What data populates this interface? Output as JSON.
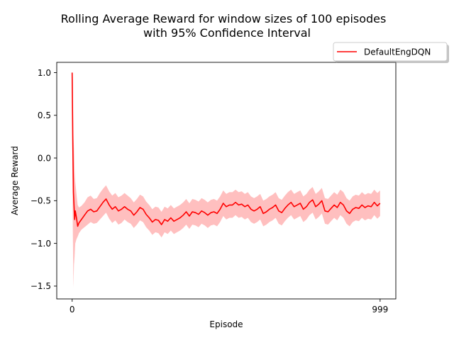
{
  "chart_data": {
    "type": "line",
    "title_line1": "Rolling Average Reward for window sizes of 100 episodes",
    "title_line2": "with 95% Confidence Interval",
    "xlabel": "Episode",
    "ylabel": "Average Reward",
    "xlim": [
      -50,
      1050
    ],
    "ylim": [
      -1.65,
      1.12
    ],
    "x_ticks": [
      {
        "value": 0,
        "label": "0"
      },
      {
        "value": 999,
        "label": "999"
      }
    ],
    "y_ticks": [
      {
        "value": 1.0,
        "label": "1.0"
      },
      {
        "value": 0.5,
        "label": "0.5"
      },
      {
        "value": 0.0,
        "label": "0.0"
      },
      {
        "value": -0.5,
        "label": "−0.5"
      },
      {
        "value": -1.0,
        "label": "−1.0"
      },
      {
        "value": -1.5,
        "label": "−1.5"
      }
    ],
    "grid": false,
    "legend_position": "top-right",
    "series": [
      {
        "name": "DefaultEngDQN",
        "color": "#ff0000",
        "ci_color": "#ff0000",
        "x": [
          0,
          2,
          4,
          6,
          8,
          10,
          14,
          18,
          22,
          30,
          40,
          50,
          60,
          70,
          80,
          90,
          100,
          110,
          120,
          130,
          140,
          150,
          160,
          170,
          180,
          190,
          200,
          210,
          220,
          230,
          240,
          250,
          260,
          270,
          280,
          290,
          300,
          310,
          320,
          330,
          340,
          350,
          360,
          370,
          380,
          390,
          400,
          410,
          420,
          430,
          440,
          450,
          460,
          470,
          480,
          490,
          500,
          510,
          520,
          530,
          540,
          550,
          560,
          570,
          580,
          590,
          600,
          610,
          620,
          630,
          640,
          650,
          660,
          670,
          680,
          690,
          700,
          710,
          720,
          730,
          740,
          750,
          760,
          770,
          780,
          790,
          800,
          810,
          820,
          830,
          840,
          850,
          860,
          870,
          880,
          890,
          900,
          910,
          920,
          930,
          940,
          950,
          960,
          970,
          980,
          990,
          999
        ],
        "y": [
          1.0,
          0.2,
          -0.4,
          -0.55,
          -0.72,
          -0.62,
          -0.7,
          -0.8,
          -0.76,
          -0.72,
          -0.67,
          -0.62,
          -0.6,
          -0.63,
          -0.62,
          -0.57,
          -0.52,
          -0.48,
          -0.55,
          -0.6,
          -0.57,
          -0.62,
          -0.6,
          -0.57,
          -0.6,
          -0.62,
          -0.67,
          -0.63,
          -0.58,
          -0.6,
          -0.66,
          -0.7,
          -0.75,
          -0.72,
          -0.73,
          -0.78,
          -0.72,
          -0.74,
          -0.7,
          -0.74,
          -0.72,
          -0.7,
          -0.67,
          -0.63,
          -0.68,
          -0.63,
          -0.64,
          -0.66,
          -0.62,
          -0.64,
          -0.67,
          -0.64,
          -0.63,
          -0.65,
          -0.6,
          -0.53,
          -0.57,
          -0.55,
          -0.55,
          -0.52,
          -0.55,
          -0.54,
          -0.57,
          -0.55,
          -0.6,
          -0.62,
          -0.6,
          -0.57,
          -0.65,
          -0.63,
          -0.6,
          -0.58,
          -0.55,
          -0.62,
          -0.64,
          -0.59,
          -0.55,
          -0.52,
          -0.57,
          -0.55,
          -0.53,
          -0.6,
          -0.57,
          -0.52,
          -0.49,
          -0.57,
          -0.54,
          -0.5,
          -0.62,
          -0.63,
          -0.59,
          -0.55,
          -0.58,
          -0.52,
          -0.55,
          -0.62,
          -0.65,
          -0.6,
          -0.58,
          -0.59,
          -0.55,
          -0.58,
          -0.56,
          -0.57,
          -0.52,
          -0.56,
          -0.53
        ],
        "ci_lower": [
          1.0,
          -0.8,
          -1.52,
          -1.25,
          -1.15,
          -1.0,
          -0.95,
          -0.92,
          -0.88,
          -0.84,
          -0.81,
          -0.78,
          -0.75,
          -0.77,
          -0.76,
          -0.72,
          -0.68,
          -0.64,
          -0.71,
          -0.76,
          -0.73,
          -0.78,
          -0.76,
          -0.72,
          -0.75,
          -0.77,
          -0.82,
          -0.78,
          -0.73,
          -0.75,
          -0.81,
          -0.85,
          -0.9,
          -0.87,
          -0.88,
          -0.93,
          -0.87,
          -0.89,
          -0.85,
          -0.89,
          -0.87,
          -0.85,
          -0.82,
          -0.78,
          -0.83,
          -0.78,
          -0.79,
          -0.81,
          -0.77,
          -0.79,
          -0.82,
          -0.79,
          -0.78,
          -0.8,
          -0.75,
          -0.68,
          -0.72,
          -0.7,
          -0.7,
          -0.67,
          -0.7,
          -0.69,
          -0.72,
          -0.7,
          -0.75,
          -0.77,
          -0.75,
          -0.72,
          -0.8,
          -0.78,
          -0.75,
          -0.73,
          -0.7,
          -0.77,
          -0.79,
          -0.74,
          -0.7,
          -0.67,
          -0.72,
          -0.7,
          -0.68,
          -0.75,
          -0.72,
          -0.67,
          -0.64,
          -0.72,
          -0.69,
          -0.65,
          -0.77,
          -0.78,
          -0.74,
          -0.7,
          -0.73,
          -0.67,
          -0.7,
          -0.77,
          -0.8,
          -0.75,
          -0.73,
          -0.74,
          -0.7,
          -0.73,
          -0.71,
          -0.72,
          -0.67,
          -0.71,
          -0.68
        ],
        "ci_upper": [
          1.0,
          0.95,
          0.28,
          0.1,
          -0.15,
          -0.28,
          -0.42,
          -0.55,
          -0.58,
          -0.56,
          -0.52,
          -0.46,
          -0.44,
          -0.48,
          -0.47,
          -0.41,
          -0.36,
          -0.32,
          -0.39,
          -0.44,
          -0.41,
          -0.46,
          -0.44,
          -0.41,
          -0.44,
          -0.47,
          -0.52,
          -0.48,
          -0.43,
          -0.45,
          -0.51,
          -0.55,
          -0.6,
          -0.57,
          -0.58,
          -0.63,
          -0.57,
          -0.59,
          -0.55,
          -0.59,
          -0.57,
          -0.55,
          -0.52,
          -0.48,
          -0.53,
          -0.48,
          -0.49,
          -0.51,
          -0.47,
          -0.49,
          -0.52,
          -0.49,
          -0.48,
          -0.5,
          -0.45,
          -0.38,
          -0.42,
          -0.4,
          -0.4,
          -0.37,
          -0.4,
          -0.39,
          -0.42,
          -0.4,
          -0.45,
          -0.47,
          -0.45,
          -0.42,
          -0.5,
          -0.48,
          -0.45,
          -0.43,
          -0.4,
          -0.47,
          -0.49,
          -0.44,
          -0.4,
          -0.37,
          -0.42,
          -0.4,
          -0.38,
          -0.45,
          -0.42,
          -0.37,
          -0.34,
          -0.42,
          -0.39,
          -0.35,
          -0.47,
          -0.48,
          -0.44,
          -0.4,
          -0.43,
          -0.37,
          -0.4,
          -0.47,
          -0.5,
          -0.45,
          -0.43,
          -0.44,
          -0.4,
          -0.43,
          -0.41,
          -0.42,
          -0.37,
          -0.41,
          -0.38
        ]
      }
    ]
  }
}
